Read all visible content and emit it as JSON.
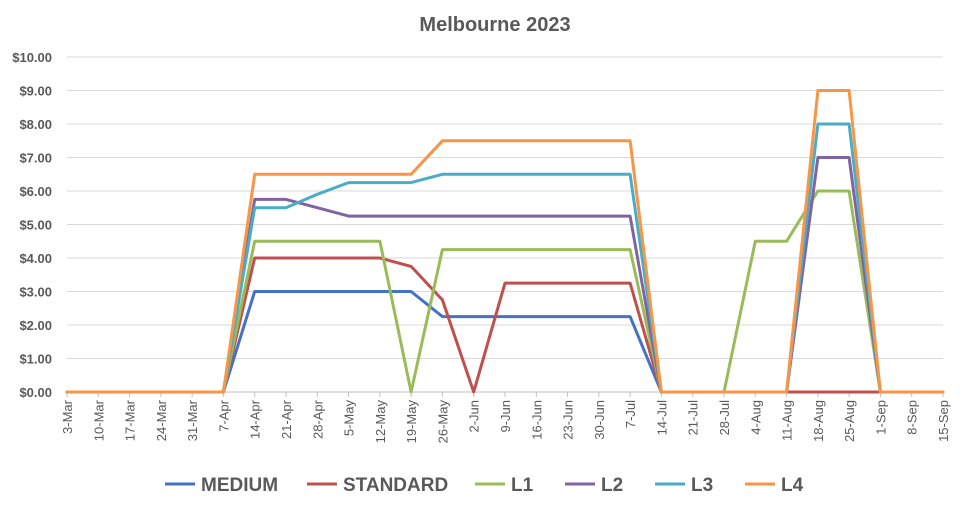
{
  "chart_data": {
    "type": "line",
    "title": "Melbourne 2023",
    "xlabel": "",
    "ylabel": "",
    "ylim": [
      0,
      10
    ],
    "y_ticks": [
      "$0.00",
      "$1.00",
      "$2.00",
      "$3.00",
      "$4.00",
      "$5.00",
      "$6.00",
      "$7.00",
      "$8.00",
      "$9.00",
      "$10.00"
    ],
    "grid": true,
    "legend_position": "bottom",
    "categories": [
      "3-Mar",
      "10-Mar",
      "17-Mar",
      "24-Mar",
      "31-Mar",
      "7-Apr",
      "14-Apr",
      "21-Apr",
      "28-Apr",
      "5-May",
      "12-May",
      "19-May",
      "26-May",
      "2-Jun",
      "9-Jun",
      "16-Jun",
      "23-Jun",
      "30-Jun",
      "7-Jul",
      "14-Jul",
      "21-Jul",
      "28-Jul",
      "4-Aug",
      "11-Aug",
      "18-Aug",
      "25-Aug",
      "1-Sep",
      "8-Sep",
      "15-Sep"
    ],
    "series": [
      {
        "name": "MEDIUM",
        "color": "#4472C4",
        "values": [
          0,
          0,
          0,
          0,
          0,
          0,
          3,
          3,
          3,
          3,
          3,
          3,
          2.25,
          2.25,
          2.25,
          2.25,
          2.25,
          2.25,
          2.25,
          0,
          0,
          0,
          0,
          0,
          0,
          0,
          0,
          0,
          0
        ]
      },
      {
        "name": "STANDARD",
        "color": "#C0504D",
        "values": [
          0,
          0,
          0,
          0,
          0,
          0,
          4,
          4,
          4,
          4,
          4,
          3.75,
          2.75,
          0,
          3.25,
          3.25,
          3.25,
          3.25,
          3.25,
          0,
          0,
          0,
          0,
          0,
          0,
          0,
          0,
          0,
          0
        ]
      },
      {
        "name": "L1",
        "color": "#9BBB59",
        "values": [
          0,
          0,
          0,
          0,
          0,
          0,
          4.5,
          4.5,
          4.5,
          4.5,
          4.5,
          0,
          4.25,
          4.25,
          4.25,
          4.25,
          4.25,
          4.25,
          4.25,
          0,
          0,
          0,
          4.5,
          4.5,
          6,
          6,
          0,
          0,
          0
        ]
      },
      {
        "name": "L2",
        "color": "#8064A2",
        "values": [
          0,
          0,
          0,
          0,
          0,
          0,
          5.75,
          5.75,
          5.5,
          5.25,
          5.25,
          5.25,
          5.25,
          5.25,
          5.25,
          5.25,
          5.25,
          5.25,
          5.25,
          0,
          0,
          0,
          0,
          0,
          7,
          7,
          0,
          0,
          0
        ]
      },
      {
        "name": "L3",
        "color": "#4BACC6",
        "values": [
          0,
          0,
          0,
          0,
          0,
          0,
          5.5,
          5.5,
          5.9,
          6.25,
          6.25,
          6.25,
          6.5,
          6.5,
          6.5,
          6.5,
          6.5,
          6.5,
          6.5,
          0,
          0,
          0,
          0,
          0,
          8,
          8,
          0,
          0,
          0
        ]
      },
      {
        "name": "L4",
        "color": "#F79646",
        "values": [
          0,
          0,
          0,
          0,
          0,
          0,
          6.5,
          6.5,
          6.5,
          6.5,
          6.5,
          6.5,
          7.5,
          7.5,
          7.5,
          7.5,
          7.5,
          7.5,
          7.5,
          0,
          0,
          0,
          0,
          0,
          9,
          9,
          0,
          0,
          0
        ]
      }
    ]
  }
}
